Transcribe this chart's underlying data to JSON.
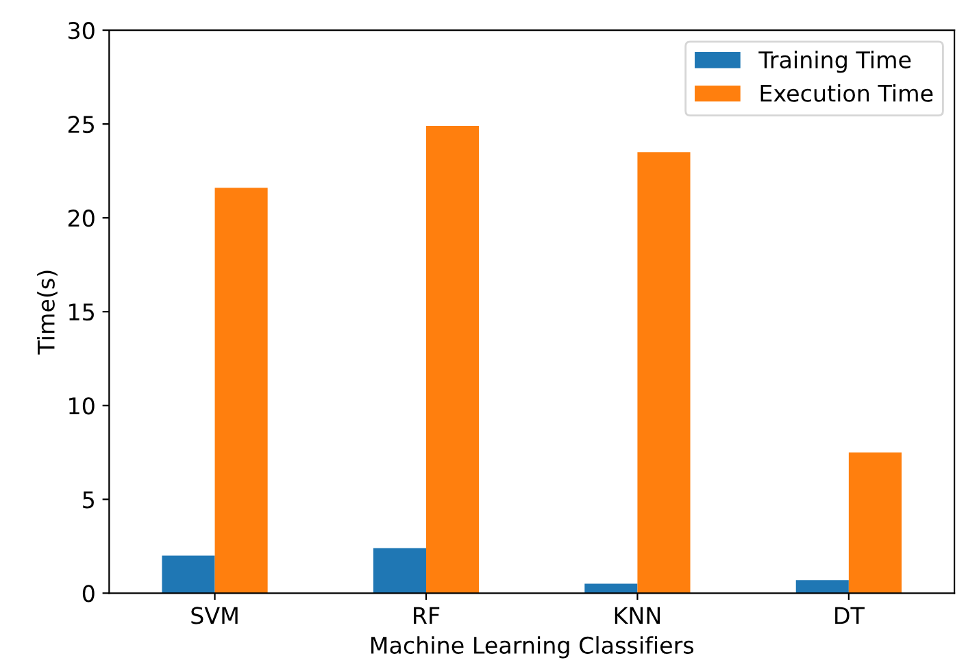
{
  "chart_data": {
    "type": "bar",
    "xlabel": "Machine Learning Classifiers",
    "ylabel": "Time(s)",
    "categories": [
      "SVM",
      "RF",
      "KNN",
      "DT"
    ],
    "series": [
      {
        "name": "Training Time",
        "color": "#1f77b4",
        "values": [
          2.0,
          2.4,
          0.5,
          0.7
        ]
      },
      {
        "name": "Execution Time",
        "color": "#ff7f0e",
        "values": [
          21.6,
          24.9,
          23.5,
          7.5
        ]
      }
    ],
    "ylim": [
      0,
      30
    ],
    "yticks": [
      0,
      5,
      10,
      15,
      20,
      25,
      30
    ],
    "legend": "top right",
    "grid": false
  }
}
